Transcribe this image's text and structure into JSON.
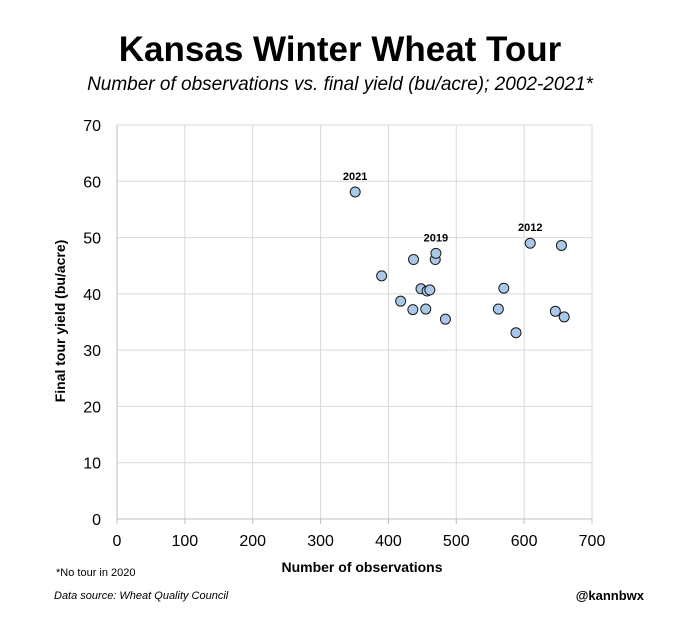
{
  "chart_data": {
    "type": "scatter",
    "title": "Kansas Winter Wheat Tour",
    "subtitle": "Number of observations vs. final yield (bu/acre); 2002-2021*",
    "xlabel": "Number of observations",
    "ylabel": "Final tour yield (bu/acre)",
    "xlim": [
      0,
      700
    ],
    "ylim": [
      0,
      70
    ],
    "xticks": [
      "0",
      "100",
      "200",
      "300",
      "400",
      "500",
      "600",
      "700"
    ],
    "yticks": [
      "0",
      "10",
      "20",
      "30",
      "40",
      "50",
      "60",
      "70"
    ],
    "grid": true,
    "point_color": "#a9c8e8",
    "point_edge": "#1a1a1a",
    "points": [
      {
        "x": 351,
        "y": 58.1,
        "label": "2021"
      },
      {
        "x": 390,
        "y": 43.2,
        "label": ""
      },
      {
        "x": 418,
        "y": 38.7,
        "label": ""
      },
      {
        "x": 436,
        "y": 37.2,
        "label": ""
      },
      {
        "x": 437,
        "y": 46.1,
        "label": ""
      },
      {
        "x": 448,
        "y": 40.9,
        "label": ""
      },
      {
        "x": 455,
        "y": 37.3,
        "label": ""
      },
      {
        "x": 457,
        "y": 40.5,
        "label": ""
      },
      {
        "x": 461,
        "y": 40.7,
        "label": ""
      },
      {
        "x": 469,
        "y": 46.1,
        "label": ""
      },
      {
        "x": 470,
        "y": 47.2,
        "label": "2019"
      },
      {
        "x": 484,
        "y": 35.5,
        "label": ""
      },
      {
        "x": 562,
        "y": 37.3,
        "label": ""
      },
      {
        "x": 570,
        "y": 41.0,
        "label": ""
      },
      {
        "x": 588,
        "y": 33.1,
        "label": ""
      },
      {
        "x": 609,
        "y": 49.0,
        "label": "2012"
      },
      {
        "x": 646,
        "y": 36.9,
        "label": ""
      },
      {
        "x": 655,
        "y": 48.6,
        "label": ""
      },
      {
        "x": 659,
        "y": 35.9,
        "label": ""
      }
    ]
  },
  "footnote": "*No tour in 2020",
  "source": "Data source: Wheat Quality Council",
  "handle": "@kannbwx"
}
